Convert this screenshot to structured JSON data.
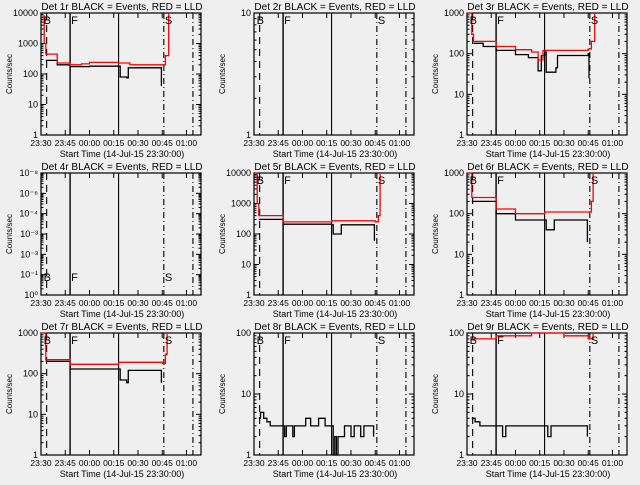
{
  "colors": {
    "events": "#000000",
    "lld": "#ff0000",
    "background": "#efefef"
  },
  "chart_data": [
    {
      "type": "line",
      "title": "Det 1r BLACK = Events, RED = LLD",
      "ylabel": "Counts/sec",
      "xlabel": "Start Time (14-Jul-15 23:30:00)",
      "ylim": [
        1,
        10000
      ],
      "yticklabels": [
        "1",
        "10",
        "100",
        "1000",
        "10000"
      ],
      "series": [
        {
          "name": "Events",
          "color": "#000000",
          "points": [
            [
              3,
              280
            ],
            [
              10,
              200
            ],
            [
              18,
              175
            ],
            [
              30,
              180
            ],
            [
              48,
              180
            ],
            [
              49,
              80
            ],
            [
              53,
              75
            ],
            [
              54,
              160
            ],
            [
              74,
              160
            ],
            [
              74.5,
              40
            ]
          ]
        },
        {
          "name": "LLD",
          "color": "#ff0000",
          "points": [
            [
              0,
              8000
            ],
            [
              2,
              1000
            ],
            [
              3,
              450
            ],
            [
              10,
              230
            ],
            [
              18,
              200
            ],
            [
              25,
              215
            ],
            [
              30,
              240
            ],
            [
              48,
              230
            ],
            [
              55,
              200
            ],
            [
              75,
              200
            ],
            [
              77,
              400
            ],
            [
              79,
              10000
            ]
          ]
        }
      ]
    },
    {
      "type": "line",
      "title": "Det 2r BLACK = Events, RED = LLD",
      "ylabel": "Counts/sec",
      "xlabel": "Start Time (14-Jul-15 23:30:00)",
      "ylim": [
        1,
        10
      ],
      "yticklabels": [
        "1",
        "10"
      ],
      "series": []
    },
    {
      "type": "line",
      "title": "Det 3r BLACK = Events, RED = LLD",
      "ylabel": "Counts/sec",
      "xlabel": "Start Time (14-Jul-15 23:30:00)",
      "ylim": [
        1,
        1000
      ],
      "yticklabels": [
        "1",
        "10",
        "100",
        "1000"
      ],
      "series": [
        {
          "name": "Events",
          "color": "#000000",
          "points": [
            [
              4,
              180
            ],
            [
              10,
              150
            ],
            [
              18,
              120
            ],
            [
              30,
              95
            ],
            [
              38,
              80
            ],
            [
              44,
              38
            ],
            [
              46,
              90
            ],
            [
              48,
              110
            ],
            [
              49,
              35
            ],
            [
              55,
              45
            ],
            [
              56,
              90
            ],
            [
              75,
              100
            ],
            [
              75.5,
              25
            ]
          ]
        },
        {
          "name": "LLD",
          "color": "#ff0000",
          "points": [
            [
              0,
              1000
            ],
            [
              3,
              300
            ],
            [
              4,
              200
            ],
            [
              18,
              150
            ],
            [
              30,
              125
            ],
            [
              40,
              110
            ],
            [
              44,
              70
            ],
            [
              47,
              120
            ],
            [
              55,
              120
            ],
            [
              75,
              130
            ],
            [
              77,
              200
            ],
            [
              79,
              1000
            ]
          ]
        }
      ]
    },
    {
      "type": "line",
      "title": "Det 4r BLACK = Events, RED = LLD",
      "ylabel": "Counts/sec",
      "xlabel": "Start Time (14-Jul-15 23:30:00)",
      "ylim": [
        1,
        10
      ],
      "yticklabels": [
        "10⁰",
        "10⁻¹",
        "10⁻³",
        "10⁻³",
        "10⁻⁴",
        "10⁻⁶",
        "10⁻⁸"
      ],
      "series": []
    },
    {
      "type": "line",
      "title": "Det 5r BLACK = Events, RED = LLD",
      "ylabel": "Counts/sec",
      "xlabel": "Start Time (14-Jul-15 23:30:00)",
      "ylim": [
        1,
        10000
      ],
      "yticklabels": [
        "1",
        "10",
        "100",
        "1000",
        "10000"
      ],
      "series": [
        {
          "name": "Events",
          "color": "#000000",
          "points": [
            [
              3,
              300
            ],
            [
              18,
              210
            ],
            [
              48,
              200
            ],
            [
              49,
              100
            ],
            [
              53,
              100
            ],
            [
              54,
              200
            ],
            [
              74,
              200
            ],
            [
              74.5,
              60
            ]
          ]
        },
        {
          "name": "LLD",
          "color": "#ff0000",
          "points": [
            [
              0,
              10000
            ],
            [
              2,
              1000
            ],
            [
              3,
              400
            ],
            [
              18,
              250
            ],
            [
              48,
              270
            ],
            [
              75,
              250
            ],
            [
              77,
              400
            ],
            [
              78,
              10000
            ]
          ]
        }
      ]
    },
    {
      "type": "line",
      "title": "Det 6r BLACK = Events, RED = LLD",
      "ylabel": "Counts/sec",
      "xlabel": "Start Time (14-Jul-15 23:30:00)",
      "ylim": [
        1,
        1000
      ],
      "yticklabels": [
        "1",
        "10",
        "100",
        "1000"
      ],
      "series": [
        {
          "name": "Events",
          "color": "#000000",
          "points": [
            [
              3,
              200
            ],
            [
              18,
              100
            ],
            [
              30,
              70
            ],
            [
              48,
              70
            ],
            [
              49,
              40
            ],
            [
              53,
              40
            ],
            [
              54,
              70
            ],
            [
              74,
              70
            ],
            [
              74.5,
              20
            ]
          ]
        },
        {
          "name": "LLD",
          "color": "#ff0000",
          "points": [
            [
              0,
              1000
            ],
            [
              3,
              250
            ],
            [
              18,
              130
            ],
            [
              30,
              100
            ],
            [
              48,
              110
            ],
            [
              75,
              110
            ],
            [
              77,
              200
            ],
            [
              78,
              1000
            ]
          ]
        }
      ]
    },
    {
      "type": "line",
      "title": "Det 7r BLACK = Events, RED = LLD",
      "ylabel": "Counts/sec",
      "xlabel": "Start Time (14-Jul-15 23:30:00)",
      "ylim": [
        1,
        1000
      ],
      "yticklabels": [
        "1",
        "10",
        "100",
        "1000"
      ],
      "series": [
        {
          "name": "Events",
          "color": "#000000",
          "points": [
            [
              3,
              200
            ],
            [
              18,
              130
            ],
            [
              48,
              130
            ],
            [
              49,
              70
            ],
            [
              53,
              60
            ],
            [
              54,
              120
            ],
            [
              74,
              120
            ],
            [
              74.5,
              60
            ]
          ]
        },
        {
          "name": "LLD",
          "color": "#ff0000",
          "points": [
            [
              0,
              1000
            ],
            [
              3,
              220
            ],
            [
              18,
              170
            ],
            [
              48,
              190
            ],
            [
              75,
              180
            ],
            [
              77,
              300
            ],
            [
              78,
              1000
            ]
          ]
        }
      ]
    },
    {
      "type": "line",
      "title": "Det 8r BLACK = Events, RED = LLD",
      "ylabel": "Counts/sec",
      "xlabel": "Start Time (14-Jul-15 23:30:00)",
      "ylim": [
        1,
        100
      ],
      "yticklabels": [
        "1",
        "10",
        "100"
      ],
      "series": [
        {
          "name": "Events",
          "color": "#000000",
          "points": [
            [
              3,
              4
            ],
            [
              4,
              5
            ],
            [
              6,
              4
            ],
            [
              8,
              3.5
            ],
            [
              10,
              3
            ],
            [
              18,
              3
            ],
            [
              19,
              2
            ],
            [
              20,
              3
            ],
            [
              24,
              2
            ],
            [
              25,
              3
            ],
            [
              30,
              3
            ],
            [
              32,
              4
            ],
            [
              35,
              3
            ],
            [
              40,
              4
            ],
            [
              44,
              3
            ],
            [
              48,
              3
            ],
            [
              49,
              1
            ],
            [
              50,
              2
            ],
            [
              51,
              1
            ],
            [
              52,
              2
            ],
            [
              55,
              2
            ],
            [
              56,
              3
            ],
            [
              60,
              2
            ],
            [
              62,
              3
            ],
            [
              66,
              2
            ],
            [
              68,
              3
            ],
            [
              73,
              3
            ],
            [
              74,
              2
            ]
          ]
        },
        {
          "name": "LLD",
          "color": "#ff0000",
          "points": []
        }
      ]
    },
    {
      "type": "line",
      "title": "Det 9r BLACK = Events, RED = LLD",
      "ylabel": "Counts/sec",
      "xlabel": "Start Time (14-Jul-15 23:30:00)",
      "ylim": [
        1,
        100
      ],
      "yticklabels": [
        "1",
        "10",
        "100"
      ],
      "series": [
        {
          "name": "Events",
          "color": "#000000",
          "points": [
            [
              3,
              4
            ],
            [
              5,
              3.5
            ],
            [
              8,
              3
            ],
            [
              18,
              3
            ],
            [
              22,
              2
            ],
            [
              24,
              3
            ],
            [
              40,
              3
            ],
            [
              48,
              3
            ],
            [
              50,
              2
            ],
            [
              52,
              3
            ],
            [
              74,
              3
            ],
            [
              74.5,
              2
            ]
          ]
        },
        {
          "name": "LLD",
          "color": "#ff0000",
          "points": [
            [
              3,
              80
            ],
            [
              18,
              90
            ],
            [
              40,
              100
            ],
            [
              60,
              90
            ],
            [
              75,
              80
            ],
            [
              78,
              100
            ]
          ]
        }
      ]
    }
  ],
  "xaxis": {
    "xlim_minutes": [
      0,
      99
    ],
    "ticks": [
      {
        "min": 0,
        "label": "23:30"
      },
      {
        "min": 15,
        "label": "23:45"
      },
      {
        "min": 30,
        "label": "00:00"
      },
      {
        "min": 45,
        "label": "00:15"
      },
      {
        "min": 60,
        "label": "00:30"
      },
      {
        "min": 75,
        "label": "00:45"
      },
      {
        "min": 90,
        "label": "01:00"
      }
    ]
  },
  "markers": [
    {
      "min": 3.5,
      "style": "dashed",
      "letter": "B"
    },
    {
      "min": 18,
      "style": "dotted-solid",
      "letter": "F"
    },
    {
      "min": 48,
      "style": "solid",
      "letter": ""
    },
    {
      "min": 76,
      "style": "dashdot",
      "letter": "S"
    },
    {
      "min": 94,
      "style": "dashdot",
      "letter": ""
    }
  ]
}
